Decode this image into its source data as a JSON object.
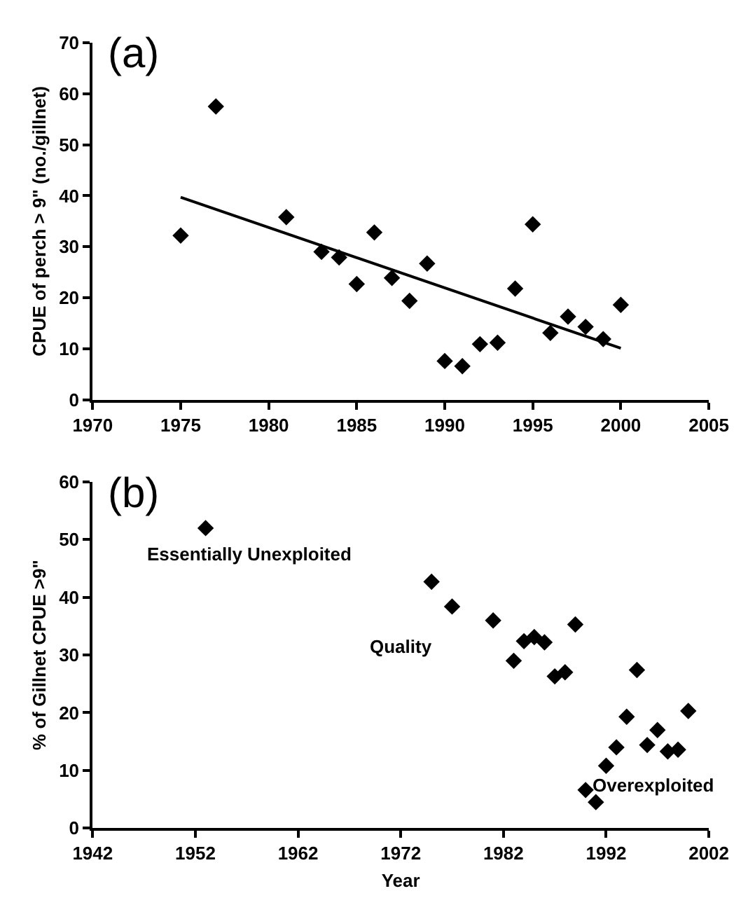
{
  "chart_data": [
    {
      "type": "scatter",
      "title": "(a)",
      "ylabel": "CPUE of perch > 9\" (no./gillnet)",
      "xlim": [
        1970,
        2005
      ],
      "xticks": [
        1970,
        1975,
        1980,
        1985,
        1990,
        1995,
        2000,
        2005
      ],
      "ylim": [
        0,
        70
      ],
      "yticks": [
        0,
        10,
        20,
        30,
        40,
        50,
        60,
        70
      ],
      "legend": false,
      "marker": "diamond",
      "series": [
        {
          "color": "#000000",
          "x": [
            1975,
            1977,
            1981,
            1983,
            1984,
            1985,
            1986,
            1987,
            1988,
            1989,
            1990,
            1991,
            1992,
            1993,
            1994,
            1995,
            1996,
            1997,
            1998,
            1999,
            2000
          ],
          "values": [
            32.2,
            57.5,
            35.8,
            29,
            27.9,
            22.7,
            32.8,
            23.9,
            19.4,
            26.7,
            7.6,
            6.6,
            10.9,
            11.2,
            21.8,
            34.4,
            13.1,
            16.3,
            14.3,
            11.9,
            18.6
          ]
        },
        {
          "type": "line",
          "marker": "none",
          "color": "#000000",
          "x": [
            1975,
            2000
          ],
          "values": [
            39.7,
            10.1
          ]
        }
      ]
    },
    {
      "type": "scatter",
      "title": "(b)",
      "xlabel": "Year",
      "ylabel": "% of Gillnet CPUE >9\"",
      "xlim": [
        1942,
        2002
      ],
      "xticks": [
        1942,
        1952,
        1962,
        1972,
        1982,
        1992,
        2002
      ],
      "ylim": [
        0,
        60
      ],
      "yticks": [
        0,
        10,
        20,
        30,
        40,
        50,
        60
      ],
      "legend": false,
      "marker": "diamond",
      "annotations": [
        "Essentially Unexploited",
        "Quality",
        "Overexploited"
      ],
      "series": [
        {
          "color": "#000000",
          "x": [
            1953,
            1975,
            1977,
            1981,
            1983,
            1984,
            1985,
            1986,
            1987,
            1988,
            1989,
            1990,
            1991,
            1992,
            1993,
            1994,
            1995,
            1996,
            1997,
            1998,
            1999,
            2000
          ],
          "values": [
            52,
            42.7,
            38.4,
            36,
            29,
            32.4,
            33.1,
            32.2,
            26.3,
            27,
            35.3,
            6.6,
            4.5,
            10.8,
            14,
            19.3,
            27.4,
            14.4,
            17,
            13.3,
            13.6,
            20.3
          ]
        }
      ]
    }
  ]
}
